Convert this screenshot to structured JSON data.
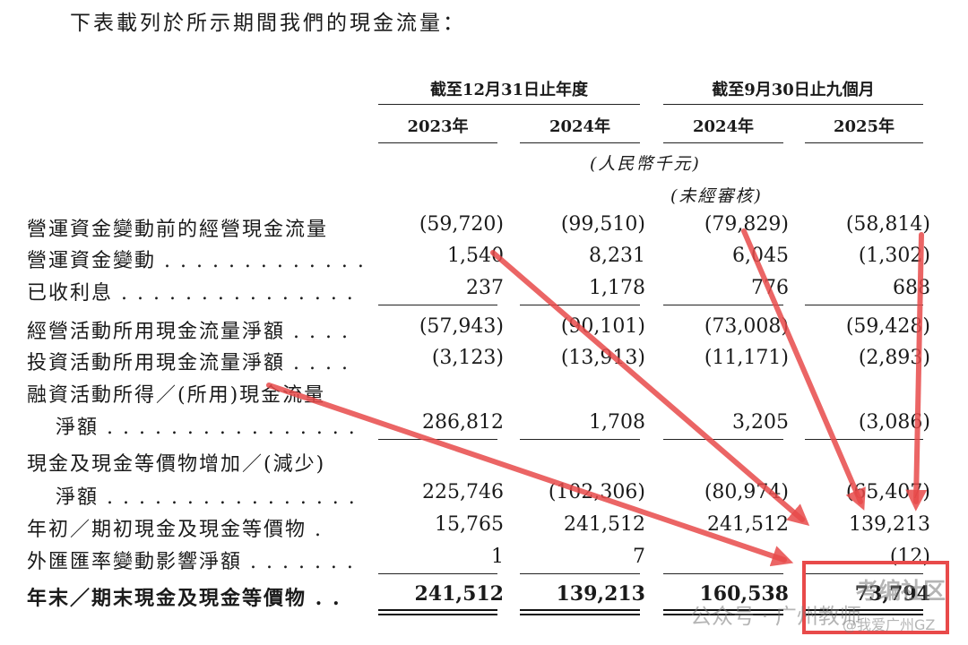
{
  "intro": "下表載列於所示期間我們的現金流量：",
  "header": {
    "periods": [
      "截至12月31日止年度",
      "截至9月30日止九個月"
    ],
    "years": [
      "2023年",
      "2024年",
      "2024年",
      "2025年"
    ],
    "currency_note": "(人民幣千元)",
    "unaudited_note": "(未經審核)"
  },
  "rows": [
    {
      "label": "營運資金變動前的經營現金流量",
      "values": [
        "(59,720)",
        "(99,510)",
        "(79,829)",
        "(58,814)"
      ]
    },
    {
      "label": "營運資金變動 . . . . . . . . . . . . . . . . .",
      "values": [
        "1,540",
        "8,231",
        "6,045",
        "(1,302)"
      ]
    },
    {
      "label": "已收利息 . . . . . . . . . . . . . . . . . . . . .",
      "values": [
        "237",
        "1,178",
        "776",
        "688"
      ]
    },
    {
      "label": "經營活動所用現金流量淨額 . . . .",
      "values": [
        "(57,943)",
        "(90,101)",
        "(73,008)",
        "(59,428)"
      ]
    },
    {
      "label": "投資活動所用現金流量淨額 . . . .",
      "values": [
        "(3,123)",
        "(13,913)",
        "(11,171)",
        "(2,893)"
      ]
    },
    {
      "label": "融資活動所得／(所用)現金流量",
      "label_cont": "淨額 . . . . . . . . . . . . . . . . . . . . . .",
      "values": [
        "286,812",
        "1,708",
        "3,205",
        "(3,086)"
      ]
    },
    {
      "label": "現金及現金等價物增加／(減少)",
      "label_cont": "淨額 . . . . . . . . . . . . . . . . . . . . . .",
      "values": [
        "225,746",
        "(102,306)",
        "(80,974)",
        "(65,407)"
      ]
    },
    {
      "label": "年初／期初現金及現金等價物 .",
      "values": [
        "15,765",
        "241,512",
        "241,512",
        "139,213"
      ]
    },
    {
      "label": "外匯匯率變動影響淨額 . . . . . . . .",
      "values": [
        "1",
        "7",
        "",
        "(12)"
      ]
    },
    {
      "label": "年末／期末現金及現金等價物 . .",
      "values": [
        "241,512",
        "139,213",
        "160,538",
        "73,794"
      ]
    }
  ],
  "watermarks": {
    "wechat": "公众号 · 广州教师",
    "brand": "考编社区",
    "handle": "@我爱广州GZ"
  },
  "annotation": {
    "color": "#e84a4a"
  }
}
